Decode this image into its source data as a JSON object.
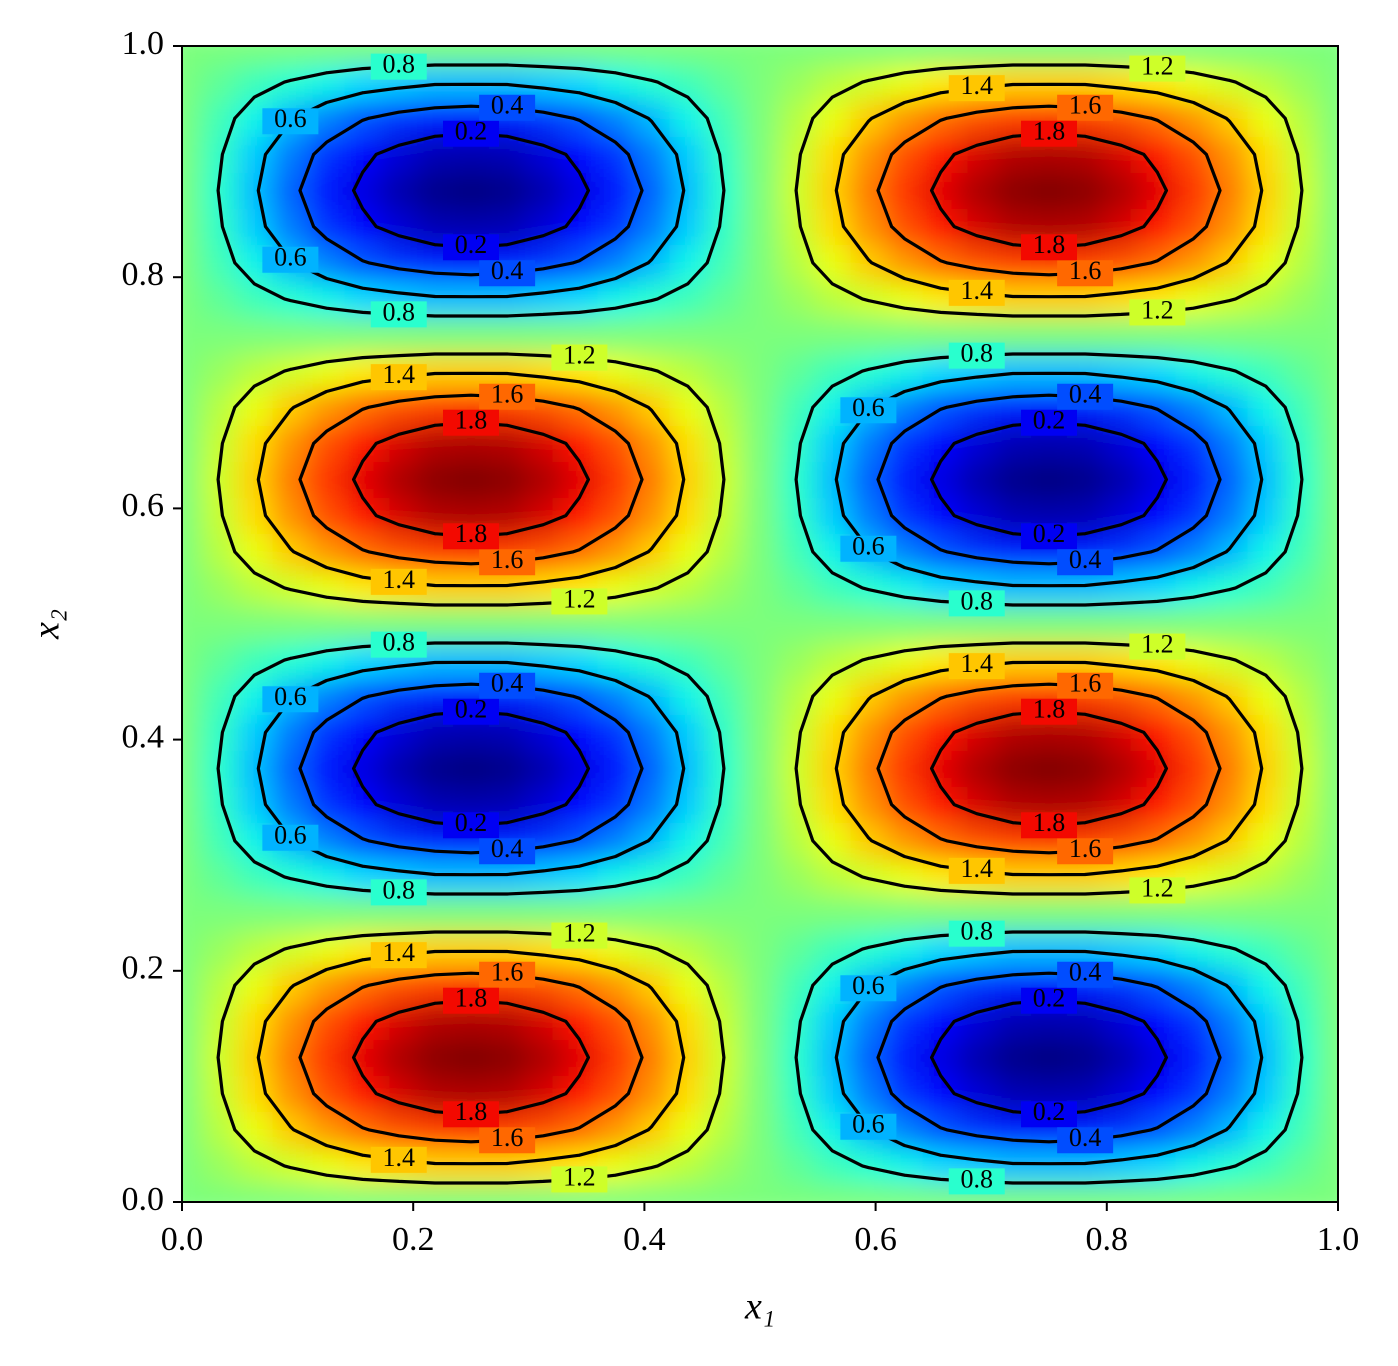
{
  "chart_data": {
    "type": "contour",
    "colormap": "jet",
    "xlabel": "x₁",
    "ylabel": "x₂",
    "xlim": [
      0,
      1
    ],
    "ylim": [
      0,
      1
    ],
    "xticks": [
      {
        "value": 0,
        "label": "0.0"
      },
      0.2,
      0.4,
      0.6,
      0.8,
      {
        "value": 1,
        "label": "1.0"
      }
    ],
    "yticks": [
      {
        "value": 0,
        "label": "0.0"
      },
      0.2,
      0.4,
      0.6,
      0.8,
      {
        "value": 1,
        "label": "1.0"
      }
    ],
    "levels": [
      0.2,
      0.4,
      0.6,
      0.8,
      1.2,
      1.4,
      1.6,
      1.8
    ],
    "x": [
      0,
      0.03125,
      0.0625,
      0.09375,
      0.125,
      0.15625,
      0.1875,
      0.21875,
      0.25,
      0.28125,
      0.3125,
      0.34375,
      0.375,
      0.40625,
      0.4375,
      0.46875,
      0.5,
      0.53125,
      0.5625,
      0.59375,
      0.625,
      0.65625,
      0.6875,
      0.71875,
      0.75,
      0.78125,
      0.8125,
      0.84375,
      0.875,
      0.90625,
      0.9375,
      0.96875,
      1
    ],
    "y": [
      0,
      0.03125,
      0.0625,
      0.09375,
      0.125,
      0.15625,
      0.1875,
      0.21875,
      0.25,
      0.28125,
      0.3125,
      0.34375,
      0.375,
      0.40625,
      0.4375,
      0.46875,
      0.5,
      0.53125,
      0.5625,
      0.59375,
      0.625,
      0.65625,
      0.6875,
      0.71875,
      0.75,
      0.78125,
      0.8125,
      0.84375,
      0.875,
      0.90625,
      0.9375,
      0.96875,
      1
    ],
    "z": [
      [
        1,
        1,
        1,
        1,
        1,
        1,
        1,
        1,
        1,
        1,
        1,
        1,
        1,
        1,
        1,
        1,
        1,
        1,
        1,
        1,
        1,
        1,
        1,
        1,
        1,
        1,
        1,
        1,
        1,
        1,
        1,
        1,
        1
      ],
      [
        1,
        1.07,
        1.15,
        1.21,
        1.27,
        1.32,
        1.35,
        1.38,
        1.38,
        1.38,
        1.35,
        1.32,
        1.27,
        1.21,
        1.15,
        1.07,
        1,
        0.93,
        0.85,
        0.79,
        0.73,
        0.68,
        0.65,
        0.62,
        0.62,
        0.62,
        0.65,
        0.68,
        0.73,
        0.79,
        0.85,
        0.93,
        1
      ],
      [
        1,
        1.14,
        1.27,
        1.39,
        1.5,
        1.59,
        1.65,
        1.69,
        1.71,
        1.69,
        1.65,
        1.59,
        1.5,
        1.39,
        1.27,
        1.14,
        1,
        0.86,
        0.73,
        0.61,
        0.5,
        0.41,
        0.35,
        0.31,
        0.29,
        0.31,
        0.35,
        0.41,
        0.5,
        0.61,
        0.73,
        0.86,
        1
      ],
      [
        1,
        1.18,
        1.35,
        1.51,
        1.65,
        1.77,
        1.85,
        1.91,
        1.92,
        1.91,
        1.85,
        1.77,
        1.65,
        1.51,
        1.35,
        1.18,
        1,
        0.82,
        0.65,
        0.49,
        0.35,
        0.23,
        0.15,
        0.09,
        0.08,
        0.09,
        0.15,
        0.23,
        0.35,
        0.49,
        0.65,
        0.82,
        1
      ],
      [
        1,
        1.2,
        1.38,
        1.56,
        1.71,
        1.83,
        1.92,
        1.98,
        2,
        1.98,
        1.92,
        1.83,
        1.71,
        1.56,
        1.38,
        1.2,
        1,
        0.8,
        0.62,
        0.44,
        0.29,
        0.17,
        0.08,
        0.02,
        0,
        0.02,
        0.08,
        0.17,
        0.29,
        0.44,
        0.62,
        0.8,
        1
      ],
      [
        1,
        1.18,
        1.35,
        1.51,
        1.65,
        1.77,
        1.85,
        1.91,
        1.92,
        1.91,
        1.85,
        1.77,
        1.65,
        1.51,
        1.35,
        1.18,
        1,
        0.82,
        0.65,
        0.49,
        0.35,
        0.23,
        0.15,
        0.09,
        0.08,
        0.09,
        0.15,
        0.23,
        0.35,
        0.49,
        0.65,
        0.82,
        1
      ],
      [
        1,
        1.14,
        1.27,
        1.39,
        1.5,
        1.59,
        1.65,
        1.69,
        1.71,
        1.69,
        1.65,
        1.59,
        1.5,
        1.39,
        1.27,
        1.14,
        1,
        0.86,
        0.73,
        0.61,
        0.5,
        0.41,
        0.35,
        0.31,
        0.29,
        0.31,
        0.35,
        0.41,
        0.5,
        0.61,
        0.73,
        0.86,
        1
      ],
      [
        1,
        1.07,
        1.15,
        1.21,
        1.27,
        1.32,
        1.35,
        1.38,
        1.38,
        1.38,
        1.35,
        1.32,
        1.27,
        1.21,
        1.15,
        1.07,
        1,
        0.93,
        0.85,
        0.79,
        0.73,
        0.68,
        0.65,
        0.62,
        0.62,
        0.62,
        0.65,
        0.68,
        0.73,
        0.79,
        0.85,
        0.93,
        1
      ],
      [
        1,
        1,
        1,
        1,
        1,
        1,
        1,
        1,
        1,
        1,
        1,
        1,
        1,
        1,
        1,
        1,
        1,
        1,
        1,
        1,
        1,
        1,
        1,
        1,
        1,
        1,
        1,
        1,
        1,
        1,
        1,
        1,
        1
      ],
      [
        1,
        0.93,
        0.85,
        0.79,
        0.73,
        0.68,
        0.65,
        0.62,
        0.62,
        0.62,
        0.65,
        0.68,
        0.73,
        0.79,
        0.85,
        0.93,
        1,
        1.07,
        1.15,
        1.21,
        1.27,
        1.32,
        1.35,
        1.38,
        1.38,
        1.38,
        1.35,
        1.32,
        1.27,
        1.21,
        1.15,
        1.07,
        1
      ],
      [
        1,
        0.86,
        0.73,
        0.61,
        0.5,
        0.41,
        0.35,
        0.31,
        0.29,
        0.31,
        0.35,
        0.41,
        0.5,
        0.61,
        0.73,
        0.86,
        1,
        1.14,
        1.27,
        1.39,
        1.5,
        1.59,
        1.65,
        1.69,
        1.71,
        1.69,
        1.65,
        1.59,
        1.5,
        1.39,
        1.27,
        1.14,
        1
      ],
      [
        1,
        0.82,
        0.65,
        0.49,
        0.35,
        0.23,
        0.15,
        0.09,
        0.08,
        0.09,
        0.15,
        0.23,
        0.35,
        0.49,
        0.65,
        0.82,
        1,
        1.18,
        1.35,
        1.51,
        1.65,
        1.77,
        1.85,
        1.91,
        1.92,
        1.91,
        1.85,
        1.77,
        1.65,
        1.51,
        1.35,
        1.18,
        1
      ],
      [
        1,
        0.8,
        0.62,
        0.44,
        0.29,
        0.17,
        0.08,
        0.02,
        0,
        0.02,
        0.08,
        0.17,
        0.29,
        0.44,
        0.62,
        0.8,
        1,
        1.2,
        1.38,
        1.56,
        1.71,
        1.83,
        1.92,
        1.98,
        2,
        1.98,
        1.92,
        1.83,
        1.71,
        1.56,
        1.38,
        1.2,
        1
      ],
      [
        1,
        0.82,
        0.65,
        0.49,
        0.35,
        0.23,
        0.15,
        0.09,
        0.08,
        0.09,
        0.15,
        0.23,
        0.35,
        0.49,
        0.65,
        0.82,
        1,
        1.18,
        1.35,
        1.51,
        1.65,
        1.77,
        1.85,
        1.91,
        1.92,
        1.91,
        1.85,
        1.77,
        1.65,
        1.51,
        1.35,
        1.18,
        1
      ],
      [
        1,
        0.86,
        0.73,
        0.61,
        0.5,
        0.41,
        0.35,
        0.31,
        0.29,
        0.31,
        0.35,
        0.41,
        0.5,
        0.61,
        0.73,
        0.86,
        1,
        1.14,
        1.27,
        1.39,
        1.5,
        1.59,
        1.65,
        1.69,
        1.71,
        1.69,
        1.65,
        1.59,
        1.5,
        1.39,
        1.27,
        1.14,
        1
      ],
      [
        1,
        0.93,
        0.85,
        0.79,
        0.73,
        0.68,
        0.65,
        0.62,
        0.62,
        0.62,
        0.65,
        0.68,
        0.73,
        0.79,
        0.85,
        0.93,
        1,
        1.07,
        1.15,
        1.21,
        1.27,
        1.32,
        1.35,
        1.38,
        1.38,
        1.38,
        1.35,
        1.32,
        1.27,
        1.21,
        1.15,
        1.07,
        1
      ],
      [
        1,
        1,
        1,
        1,
        1,
        1,
        1,
        1,
        1,
        1,
        1,
        1,
        1,
        1,
        1,
        1,
        1,
        1,
        1,
        1,
        1,
        1,
        1,
        1,
        1,
        1,
        1,
        1,
        1,
        1,
        1,
        1,
        1
      ],
      [
        1,
        1.07,
        1.15,
        1.21,
        1.27,
        1.32,
        1.35,
        1.38,
        1.38,
        1.38,
        1.35,
        1.32,
        1.27,
        1.21,
        1.15,
        1.07,
        1,
        0.93,
        0.85,
        0.79,
        0.73,
        0.68,
        0.65,
        0.62,
        0.62,
        0.62,
        0.65,
        0.68,
        0.73,
        0.79,
        0.85,
        0.93,
        1
      ],
      [
        1,
        1.14,
        1.27,
        1.39,
        1.5,
        1.59,
        1.65,
        1.69,
        1.71,
        1.69,
        1.65,
        1.59,
        1.5,
        1.39,
        1.27,
        1.14,
        1,
        0.86,
        0.73,
        0.61,
        0.5,
        0.41,
        0.35,
        0.31,
        0.29,
        0.31,
        0.35,
        0.41,
        0.5,
        0.61,
        0.73,
        0.86,
        1
      ],
      [
        1,
        1.18,
        1.35,
        1.51,
        1.65,
        1.77,
        1.85,
        1.91,
        1.92,
        1.91,
        1.85,
        1.77,
        1.65,
        1.51,
        1.35,
        1.18,
        1,
        0.82,
        0.65,
        0.49,
        0.35,
        0.23,
        0.15,
        0.09,
        0.08,
        0.09,
        0.15,
        0.23,
        0.35,
        0.49,
        0.65,
        0.82,
        1
      ],
      [
        1,
        1.2,
        1.38,
        1.56,
        1.71,
        1.83,
        1.92,
        1.98,
        2,
        1.98,
        1.92,
        1.83,
        1.71,
        1.56,
        1.38,
        1.2,
        1,
        0.8,
        0.62,
        0.44,
        0.29,
        0.17,
        0.08,
        0.02,
        0,
        0.02,
        0.08,
        0.17,
        0.29,
        0.44,
        0.62,
        0.8,
        1
      ],
      [
        1,
        1.18,
        1.35,
        1.51,
        1.65,
        1.77,
        1.85,
        1.91,
        1.92,
        1.91,
        1.85,
        1.77,
        1.65,
        1.51,
        1.35,
        1.18,
        1,
        0.82,
        0.65,
        0.49,
        0.35,
        0.23,
        0.15,
        0.09,
        0.08,
        0.09,
        0.15,
        0.23,
        0.35,
        0.49,
        0.65,
        0.82,
        1
      ],
      [
        1,
        1.14,
        1.27,
        1.39,
        1.5,
        1.59,
        1.65,
        1.69,
        1.71,
        1.69,
        1.65,
        1.59,
        1.5,
        1.39,
        1.27,
        1.14,
        1,
        0.86,
        0.73,
        0.61,
        0.5,
        0.41,
        0.35,
        0.31,
        0.29,
        0.31,
        0.35,
        0.41,
        0.5,
        0.61,
        0.73,
        0.86,
        1
      ],
      [
        1,
        1.07,
        1.15,
        1.21,
        1.27,
        1.32,
        1.35,
        1.38,
        1.38,
        1.38,
        1.35,
        1.32,
        1.27,
        1.21,
        1.15,
        1.07,
        1,
        0.93,
        0.85,
        0.79,
        0.73,
        0.68,
        0.65,
        0.62,
        0.62,
        0.62,
        0.65,
        0.68,
        0.73,
        0.79,
        0.85,
        0.93,
        1
      ],
      [
        1,
        1,
        1,
        1,
        1,
        1,
        1,
        1,
        1,
        1,
        1,
        1,
        1,
        1,
        1,
        1,
        1,
        1,
        1,
        1,
        1,
        1,
        1,
        1,
        1,
        1,
        1,
        1,
        1,
        1,
        1,
        1,
        1
      ],
      [
        1,
        0.93,
        0.85,
        0.79,
        0.73,
        0.68,
        0.65,
        0.62,
        0.62,
        0.62,
        0.65,
        0.68,
        0.73,
        0.79,
        0.85,
        0.93,
        1,
        1.07,
        1.15,
        1.21,
        1.27,
        1.32,
        1.35,
        1.38,
        1.38,
        1.38,
        1.35,
        1.32,
        1.27,
        1.21,
        1.15,
        1.07,
        1
      ],
      [
        1,
        0.86,
        0.73,
        0.61,
        0.5,
        0.41,
        0.35,
        0.31,
        0.29,
        0.31,
        0.35,
        0.41,
        0.5,
        0.61,
        0.73,
        0.86,
        1,
        1.14,
        1.27,
        1.39,
        1.5,
        1.59,
        1.65,
        1.69,
        1.71,
        1.69,
        1.65,
        1.59,
        1.5,
        1.39,
        1.27,
        1.14,
        1
      ],
      [
        1,
        0.82,
        0.65,
        0.49,
        0.35,
        0.23,
        0.15,
        0.09,
        0.08,
        0.09,
        0.15,
        0.23,
        0.35,
        0.49,
        0.65,
        0.82,
        1,
        1.18,
        1.35,
        1.51,
        1.65,
        1.77,
        1.85,
        1.91,
        1.92,
        1.91,
        1.85,
        1.77,
        1.65,
        1.51,
        1.35,
        1.18,
        1
      ],
      [
        1,
        0.8,
        0.62,
        0.44,
        0.29,
        0.17,
        0.08,
        0.02,
        0,
        0.02,
        0.08,
        0.17,
        0.29,
        0.44,
        0.62,
        0.8,
        1,
        1.2,
        1.38,
        1.56,
        1.71,
        1.83,
        1.92,
        1.98,
        2,
        1.98,
        1.92,
        1.83,
        1.71,
        1.56,
        1.38,
        1.2,
        1
      ],
      [
        1,
        0.82,
        0.65,
        0.49,
        0.35,
        0.23,
        0.15,
        0.09,
        0.08,
        0.09,
        0.15,
        0.23,
        0.35,
        0.49,
        0.65,
        0.82,
        1,
        1.18,
        1.35,
        1.51,
        1.65,
        1.77,
        1.85,
        1.91,
        1.92,
        1.91,
        1.85,
        1.77,
        1.65,
        1.51,
        1.35,
        1.18,
        1
      ],
      [
        1,
        0.86,
        0.73,
        0.61,
        0.5,
        0.41,
        0.35,
        0.31,
        0.29,
        0.31,
        0.35,
        0.41,
        0.5,
        0.61,
        0.73,
        0.86,
        1,
        1.14,
        1.27,
        1.39,
        1.5,
        1.59,
        1.65,
        1.69,
        1.71,
        1.69,
        1.65,
        1.59,
        1.5,
        1.39,
        1.27,
        1.14,
        1
      ],
      [
        1,
        0.93,
        0.85,
        0.79,
        0.73,
        0.68,
        0.65,
        0.62,
        0.62,
        0.62,
        0.65,
        0.68,
        0.73,
        0.79,
        0.85,
        0.93,
        1,
        1.07,
        1.15,
        1.21,
        1.27,
        1.32,
        1.35,
        1.38,
        1.38,
        1.38,
        1.35,
        1.32,
        1.27,
        1.21,
        1.15,
        1.07,
        1
      ],
      [
        1,
        1,
        1,
        1,
        1,
        1,
        1,
        1,
        1,
        1,
        1,
        1,
        1,
        1,
        1,
        1,
        1,
        1,
        1,
        1,
        1,
        1,
        1,
        1,
        1,
        1,
        1,
        1,
        1,
        1,
        1,
        1,
        1
      ]
    ]
  }
}
